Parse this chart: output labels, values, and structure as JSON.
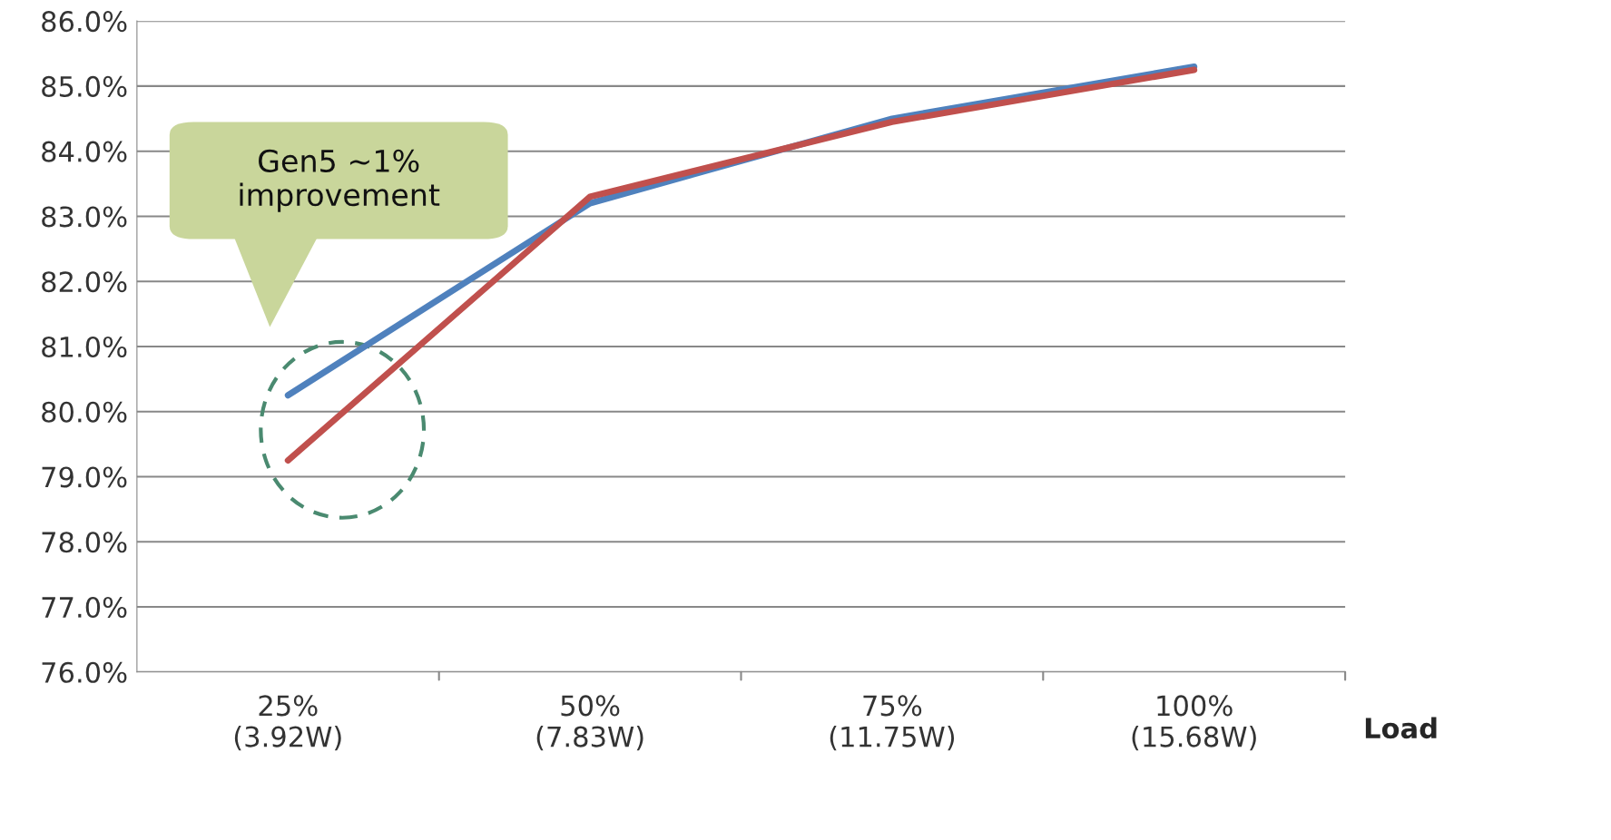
{
  "chart_data": {
    "type": "line",
    "xlabel": "Load",
    "categories": [
      "25%\n(3.92W)",
      "50%\n(7.83W)",
      "75%\n(11.75W)",
      "100%\n(15.68W)"
    ],
    "series": [
      {
        "color": "#4f81bd",
        "values": [
          80.25,
          83.2,
          84.5,
          85.3
        ]
      },
      {
        "color": "#c0504d",
        "values": [
          79.25,
          83.3,
          84.45,
          85.25
        ]
      }
    ],
    "ylim": [
      76,
      86
    ],
    "yticks": [
      {
        "value": 76,
        "label": "76.0%"
      },
      {
        "value": 77,
        "label": "77.0%"
      },
      {
        "value": 78,
        "label": "78.0%"
      },
      {
        "value": 79,
        "label": "79.0%"
      },
      {
        "value": 80,
        "label": "80.0%"
      },
      {
        "value": 81,
        "label": "81.0%"
      },
      {
        "value": 82,
        "label": "82.0%"
      },
      {
        "value": 83,
        "label": "83.0%"
      },
      {
        "value": 84,
        "label": "84.0%"
      },
      {
        "value": 85,
        "label": "85.0%"
      },
      {
        "value": 86,
        "label": "86.0%"
      }
    ],
    "grid": "y",
    "marker": "none",
    "line_style": "solid",
    "legend": false,
    "annotations": [
      "Gen5 ~1%\nimprovement"
    ]
  }
}
